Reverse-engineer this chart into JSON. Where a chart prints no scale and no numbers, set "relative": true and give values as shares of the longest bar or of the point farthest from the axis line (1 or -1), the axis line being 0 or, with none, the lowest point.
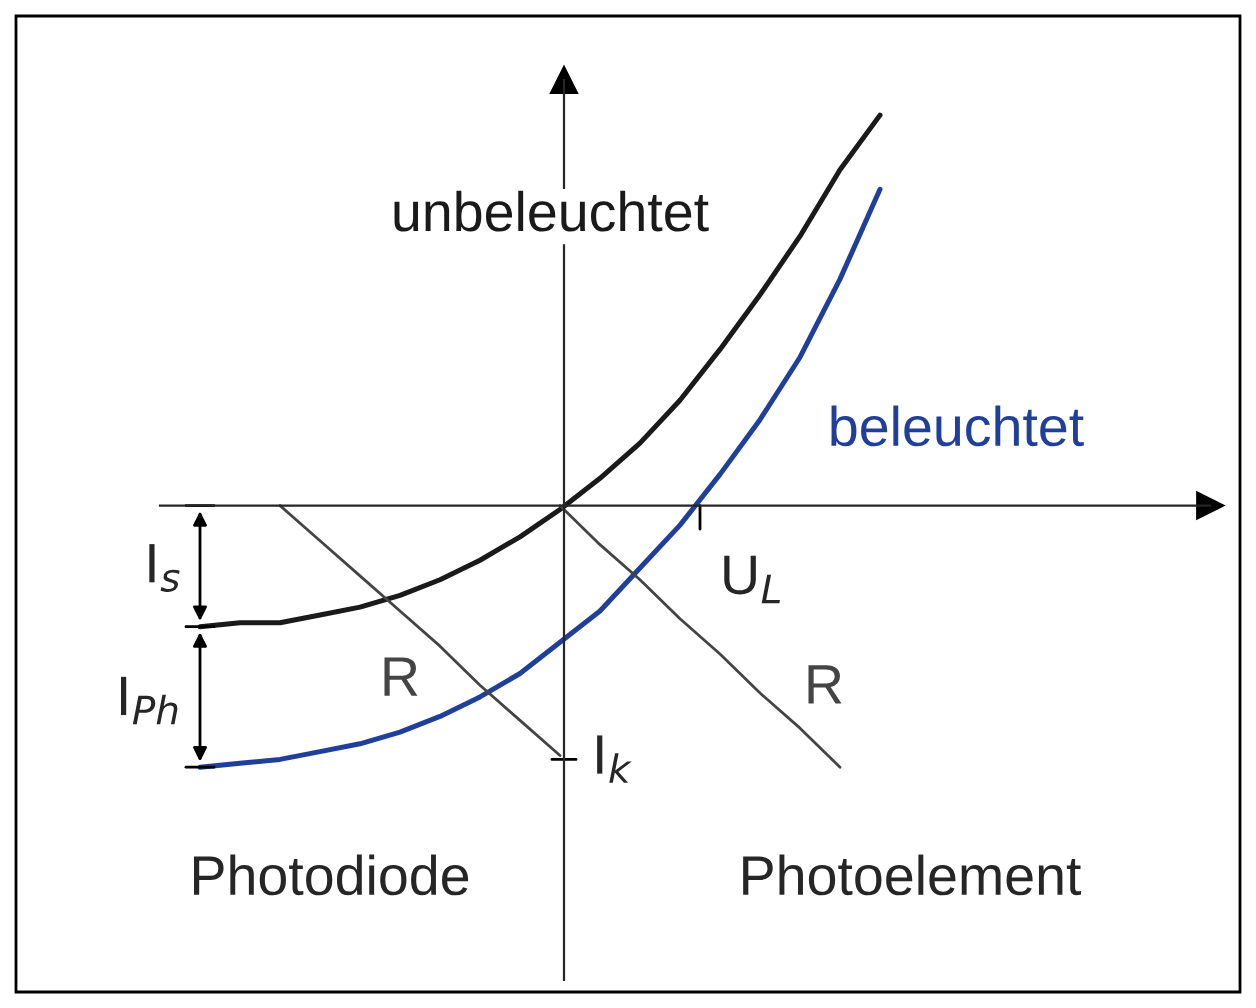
{
  "chart_data": {
    "type": "line",
    "relative": true,
    "categories": [
      null,
      null,
      null,
      null,
      null,
      null,
      null,
      null,
      null,
      null,
      null,
      null,
      null,
      null,
      null,
      null,
      null,
      null
    ],
    "series": [
      {
        "name": "unbeleuchtet",
        "color": "#1a1a1a",
        "values": [
          -0.31,
          -0.3,
          -0.3,
          -0.28,
          -0.26,
          -0.23,
          -0.19,
          -0.14,
          -0.08,
          -0.01,
          0.07,
          0.16,
          0.27,
          0.4,
          0.54,
          0.69,
          0.86,
          1.0
        ]
      },
      {
        "name": "beleuchtet",
        "color": "#1f3f99",
        "values": [
          -0.67,
          -0.66,
          -0.65,
          -0.63,
          -0.61,
          -0.58,
          -0.54,
          -0.49,
          -0.43,
          -0.35,
          -0.27,
          -0.16,
          -0.05,
          0.08,
          0.22,
          0.38,
          0.58,
          0.81
        ]
      },
      {
        "name": "R",
        "color": "#444444",
        "values": [
          null,
          null,
          0,
          -0.09,
          -0.18,
          -0.27,
          -0.36,
          -0.46,
          -0.55,
          -0.64,
          null,
          null,
          null,
          null,
          null,
          null,
          null,
          null
        ]
      },
      {
        "name": "R",
        "color": "#444444",
        "values": [
          null,
          null,
          null,
          null,
          null,
          null,
          null,
          null,
          null,
          0,
          -0.1,
          -0.19,
          -0.29,
          -0.38,
          -0.48,
          -0.57,
          -0.67,
          null
        ]
      }
    ],
    "annotations": [
      "I$_{s}$",
      "I$_{Ph}$",
      "I$_{k}$",
      "U$_{L}$",
      "Photodiode",
      "Photoelement"
    ],
    "legend": false,
    "marker": "none",
    "line_style": "solid"
  }
}
